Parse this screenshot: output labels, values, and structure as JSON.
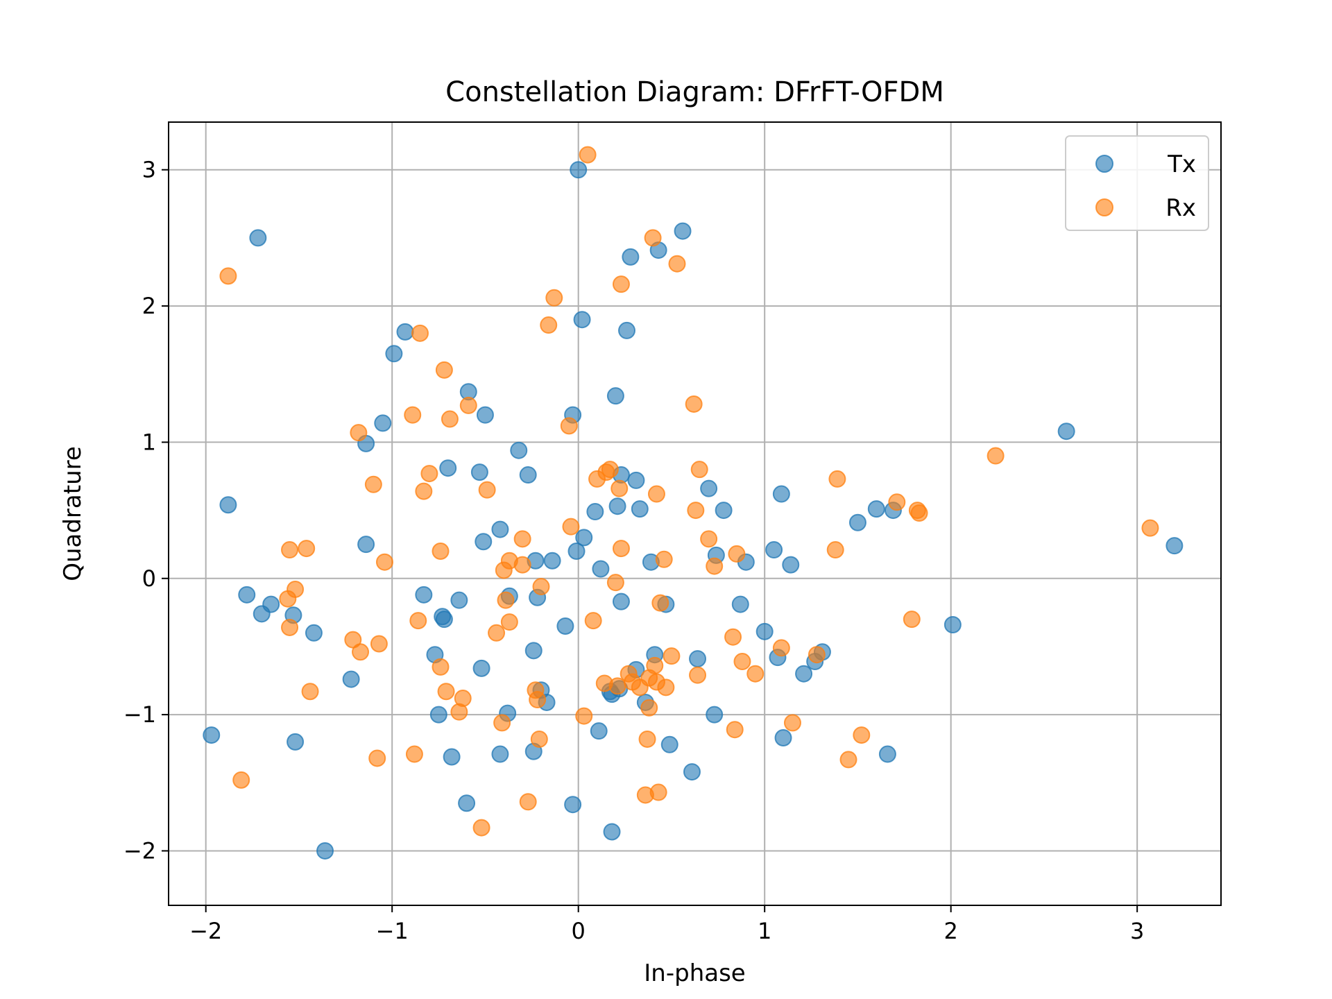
{
  "chart_data": {
    "type": "scatter",
    "title": "Constellation Diagram: DFrFT-OFDM",
    "xlabel": "In-phase",
    "ylabel": "Quadrature",
    "xlim": [
      -2.2,
      3.45
    ],
    "ylim": [
      -2.4,
      3.35
    ],
    "x_ticks": [
      -2,
      -1,
      0,
      1,
      2,
      3
    ],
    "y_ticks": [
      -2,
      -1,
      0,
      1,
      2,
      3
    ],
    "x_tick_labels": [
      "−2",
      "−1",
      "0",
      "1",
      "2",
      "3"
    ],
    "y_tick_labels": [
      "−2",
      "−1",
      "0",
      "1",
      "2",
      "3"
    ],
    "grid": true,
    "legend_position": "top-right",
    "series": [
      {
        "name": "Tx",
        "color": "#1f77b4",
        "points": [
          [
            -1.72,
            2.5
          ],
          [
            -1.88,
            0.54
          ],
          [
            -1.97,
            -1.15
          ],
          [
            -1.52,
            -1.2
          ],
          [
            -1.36,
            -2.0
          ],
          [
            -1.78,
            -0.12
          ],
          [
            -1.7,
            -0.26
          ],
          [
            -1.65,
            -0.19
          ],
          [
            -1.53,
            -0.27
          ],
          [
            -1.42,
            -0.4
          ],
          [
            -1.22,
            -0.74
          ],
          [
            -1.14,
            0.25
          ],
          [
            -1.14,
            0.99
          ],
          [
            -1.05,
            1.14
          ],
          [
            -0.99,
            1.65
          ],
          [
            -0.93,
            1.81
          ],
          [
            -0.83,
            -0.12
          ],
          [
            -0.77,
            -0.56
          ],
          [
            -0.75,
            -1.0
          ],
          [
            -0.73,
            -0.28
          ],
          [
            -0.72,
            -0.3
          ],
          [
            -0.7,
            0.81
          ],
          [
            -0.68,
            -1.31
          ],
          [
            -0.64,
            -0.16
          ],
          [
            -0.6,
            -1.65
          ],
          [
            -0.59,
            1.37
          ],
          [
            -0.53,
            0.78
          ],
          [
            -0.52,
            -0.66
          ],
          [
            -0.51,
            0.27
          ],
          [
            -0.5,
            1.2
          ],
          [
            -0.42,
            0.36
          ],
          [
            -0.42,
            -1.29
          ],
          [
            -0.38,
            -0.99
          ],
          [
            -0.37,
            -0.13
          ],
          [
            -0.32,
            0.94
          ],
          [
            -0.27,
            0.76
          ],
          [
            -0.24,
            -0.53
          ],
          [
            -0.24,
            -1.27
          ],
          [
            -0.23,
            0.13
          ],
          [
            -0.22,
            -0.14
          ],
          [
            -0.2,
            -0.82
          ],
          [
            -0.17,
            -0.91
          ],
          [
            -0.14,
            0.13
          ],
          [
            -0.07,
            -0.35
          ],
          [
            -0.03,
            -1.66
          ],
          [
            -0.03,
            1.2
          ],
          [
            -0.01,
            0.2
          ],
          [
            0.0,
            3.0
          ],
          [
            0.02,
            1.9
          ],
          [
            0.03,
            0.3
          ],
          [
            0.09,
            0.49
          ],
          [
            0.11,
            -1.12
          ],
          [
            0.12,
            0.07
          ],
          [
            0.17,
            -0.83
          ],
          [
            0.18,
            -0.85
          ],
          [
            0.18,
            -1.86
          ],
          [
            0.2,
            1.34
          ],
          [
            0.21,
            0.53
          ],
          [
            0.22,
            -0.81
          ],
          [
            0.23,
            -0.17
          ],
          [
            0.23,
            0.76
          ],
          [
            0.26,
            1.82
          ],
          [
            0.28,
            2.36
          ],
          [
            0.31,
            0.72
          ],
          [
            0.31,
            -0.67
          ],
          [
            0.33,
            0.51
          ],
          [
            0.36,
            -0.91
          ],
          [
            0.39,
            0.12
          ],
          [
            0.41,
            -0.56
          ],
          [
            0.43,
            2.41
          ],
          [
            0.47,
            -0.19
          ],
          [
            0.49,
            -1.22
          ],
          [
            0.56,
            2.55
          ],
          [
            0.61,
            -1.42
          ],
          [
            0.64,
            -0.59
          ],
          [
            0.7,
            0.66
          ],
          [
            0.73,
            -1.0
          ],
          [
            0.74,
            0.17
          ],
          [
            0.78,
            0.5
          ],
          [
            0.87,
            -0.19
          ],
          [
            0.9,
            0.12
          ],
          [
            1.0,
            -0.39
          ],
          [
            1.05,
            0.21
          ],
          [
            1.07,
            -0.58
          ],
          [
            1.09,
            0.62
          ],
          [
            1.1,
            -1.17
          ],
          [
            1.14,
            0.1
          ],
          [
            1.21,
            -0.7
          ],
          [
            1.27,
            -0.61
          ],
          [
            1.31,
            -0.54
          ],
          [
            1.5,
            0.41
          ],
          [
            1.6,
            0.51
          ],
          [
            1.66,
            -1.29
          ],
          [
            1.69,
            0.5
          ],
          [
            2.01,
            -0.34
          ],
          [
            2.62,
            1.08
          ],
          [
            3.2,
            0.24
          ]
        ]
      },
      {
        "name": "Rx",
        "color": "#ff7f0e",
        "points": [
          [
            -1.88,
            2.22
          ],
          [
            -1.81,
            -1.48
          ],
          [
            -1.55,
            0.21
          ],
          [
            -1.56,
            -0.15
          ],
          [
            -1.55,
            -0.36
          ],
          [
            -1.52,
            -0.08
          ],
          [
            -1.46,
            0.22
          ],
          [
            -1.44,
            -0.83
          ],
          [
            -1.21,
            -0.45
          ],
          [
            -1.17,
            -0.54
          ],
          [
            -1.18,
            1.07
          ],
          [
            -1.1,
            0.69
          ],
          [
            -1.08,
            -1.32
          ],
          [
            -1.07,
            -0.48
          ],
          [
            -1.04,
            0.12
          ],
          [
            -0.89,
            1.2
          ],
          [
            -0.88,
            -1.29
          ],
          [
            -0.85,
            1.8
          ],
          [
            -0.86,
            -0.31
          ],
          [
            -0.83,
            0.64
          ],
          [
            -0.8,
            0.77
          ],
          [
            -0.74,
            0.2
          ],
          [
            -0.74,
            -0.65
          ],
          [
            -0.72,
            1.53
          ],
          [
            -0.71,
            -0.83
          ],
          [
            -0.69,
            1.17
          ],
          [
            -0.64,
            -0.98
          ],
          [
            -0.62,
            -0.88
          ],
          [
            -0.59,
            1.27
          ],
          [
            -0.52,
            -1.83
          ],
          [
            -0.49,
            0.65
          ],
          [
            -0.44,
            -0.4
          ],
          [
            -0.4,
            0.06
          ],
          [
            -0.39,
            -0.16
          ],
          [
            -0.41,
            -1.06
          ],
          [
            -0.37,
            0.13
          ],
          [
            -0.37,
            -0.32
          ],
          [
            -0.3,
            0.29
          ],
          [
            -0.3,
            0.1
          ],
          [
            -0.27,
            -1.64
          ],
          [
            -0.23,
            -0.82
          ],
          [
            -0.22,
            -0.89
          ],
          [
            -0.21,
            -1.18
          ],
          [
            -0.2,
            -0.06
          ],
          [
            -0.16,
            1.86
          ],
          [
            -0.13,
            2.06
          ],
          [
            -0.05,
            1.12
          ],
          [
            -0.04,
            0.38
          ],
          [
            0.03,
            -1.01
          ],
          [
            0.05,
            3.11
          ],
          [
            0.08,
            -0.31
          ],
          [
            0.1,
            0.73
          ],
          [
            0.14,
            -0.77
          ],
          [
            0.15,
            0.78
          ],
          [
            0.17,
            0.8
          ],
          [
            0.2,
            -0.03
          ],
          [
            0.21,
            -0.79
          ],
          [
            0.22,
            0.66
          ],
          [
            0.23,
            2.16
          ],
          [
            0.23,
            0.22
          ],
          [
            0.27,
            -0.7
          ],
          [
            0.29,
            -0.76
          ],
          [
            0.33,
            -0.8
          ],
          [
            0.36,
            -1.59
          ],
          [
            0.37,
            -1.18
          ],
          [
            0.38,
            -0.95
          ],
          [
            0.38,
            -0.73
          ],
          [
            0.4,
            2.5
          ],
          [
            0.41,
            -0.64
          ],
          [
            0.42,
            -0.76
          ],
          [
            0.42,
            0.62
          ],
          [
            0.43,
            -1.57
          ],
          [
            0.44,
            -0.18
          ],
          [
            0.46,
            0.14
          ],
          [
            0.47,
            -0.8
          ],
          [
            0.5,
            -0.57
          ],
          [
            0.53,
            2.31
          ],
          [
            0.62,
            1.28
          ],
          [
            0.63,
            0.5
          ],
          [
            0.64,
            -0.71
          ],
          [
            0.65,
            0.8
          ],
          [
            0.7,
            0.29
          ],
          [
            0.73,
            0.09
          ],
          [
            0.83,
            -0.43
          ],
          [
            0.84,
            -1.11
          ],
          [
            0.85,
            0.18
          ],
          [
            0.88,
            -0.61
          ],
          [
            0.95,
            -0.7
          ],
          [
            1.09,
            -0.51
          ],
          [
            1.15,
            -1.06
          ],
          [
            1.28,
            -0.56
          ],
          [
            1.38,
            0.21
          ],
          [
            1.39,
            0.73
          ],
          [
            1.45,
            -1.33
          ],
          [
            1.52,
            -1.15
          ],
          [
            1.71,
            0.56
          ],
          [
            1.79,
            -0.3
          ],
          [
            1.82,
            0.5
          ],
          [
            1.83,
            0.48
          ],
          [
            2.24,
            0.9
          ],
          [
            3.07,
            0.37
          ]
        ]
      }
    ]
  }
}
